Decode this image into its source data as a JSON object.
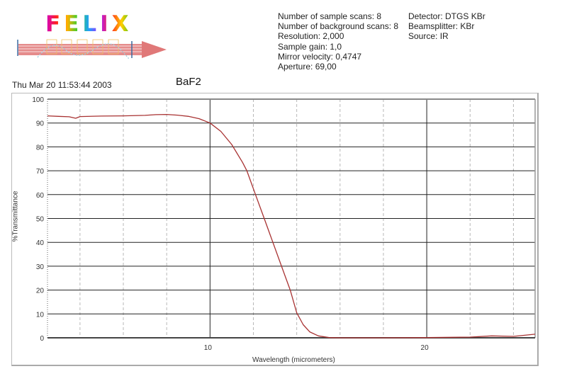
{
  "header": {
    "logo_text": "FELIX",
    "scan_info": [
      "Number of sample scans:  8",
      "Number of background scans:  8",
      "Resolution:   2,000",
      "Sample gain:  1,0",
      "Mirror velocity:  0,4747",
      "Aperture:  69,00"
    ],
    "instrument_info": [
      "Detector:  DTGS KBr",
      "Beamsplitter:  KBr",
      "Source:  IR"
    ]
  },
  "timestamp": "Thu Mar 20 11:53:44 2003",
  "chart_data": {
    "type": "line",
    "title": "BaF2",
    "xlabel": "Wavelength (micrometers)",
    "ylabel": "%Transmittance",
    "xlim": [
      2.5,
      25
    ],
    "ylim": [
      0,
      100
    ],
    "x_ticks": [
      10,
      20
    ],
    "y_ticks": [
      0,
      10,
      20,
      30,
      40,
      50,
      60,
      70,
      80,
      90,
      100
    ],
    "grid": {
      "major_x": [
        10,
        20
      ],
      "minor_x_dashed": [
        4,
        6,
        8,
        12,
        14,
        16,
        18,
        22,
        24
      ],
      "major_y": [
        10,
        20,
        30,
        40,
        50,
        60,
        70,
        80,
        90
      ]
    },
    "line_color": "#a83232",
    "series": [
      {
        "name": "BaF2",
        "x": [
          2.5,
          3.0,
          3.5,
          3.8,
          4.0,
          5.0,
          6.0,
          7.0,
          7.5,
          8.0,
          8.5,
          9.0,
          9.5,
          10.0,
          10.5,
          11.0,
          11.5,
          11.7,
          12.1,
          12.5,
          12.9,
          13.3,
          13.7,
          14.0,
          14.3,
          14.6,
          15.0,
          15.5,
          16.0,
          18.0,
          20.0,
          22.0,
          23.0,
          24.0,
          25.0
        ],
        "y": [
          93.0,
          92.8,
          92.6,
          92.0,
          92.7,
          92.9,
          93.0,
          93.2,
          93.5,
          93.6,
          93.3,
          92.8,
          91.8,
          90.0,
          86.5,
          81.0,
          73.5,
          70.0,
          60.0,
          50.0,
          40.0,
          30.0,
          20.0,
          10.5,
          5.5,
          2.5,
          0.8,
          0.1,
          0.0,
          0.0,
          0.1,
          0.3,
          0.8,
          0.6,
          1.5
        ]
      }
    ]
  }
}
